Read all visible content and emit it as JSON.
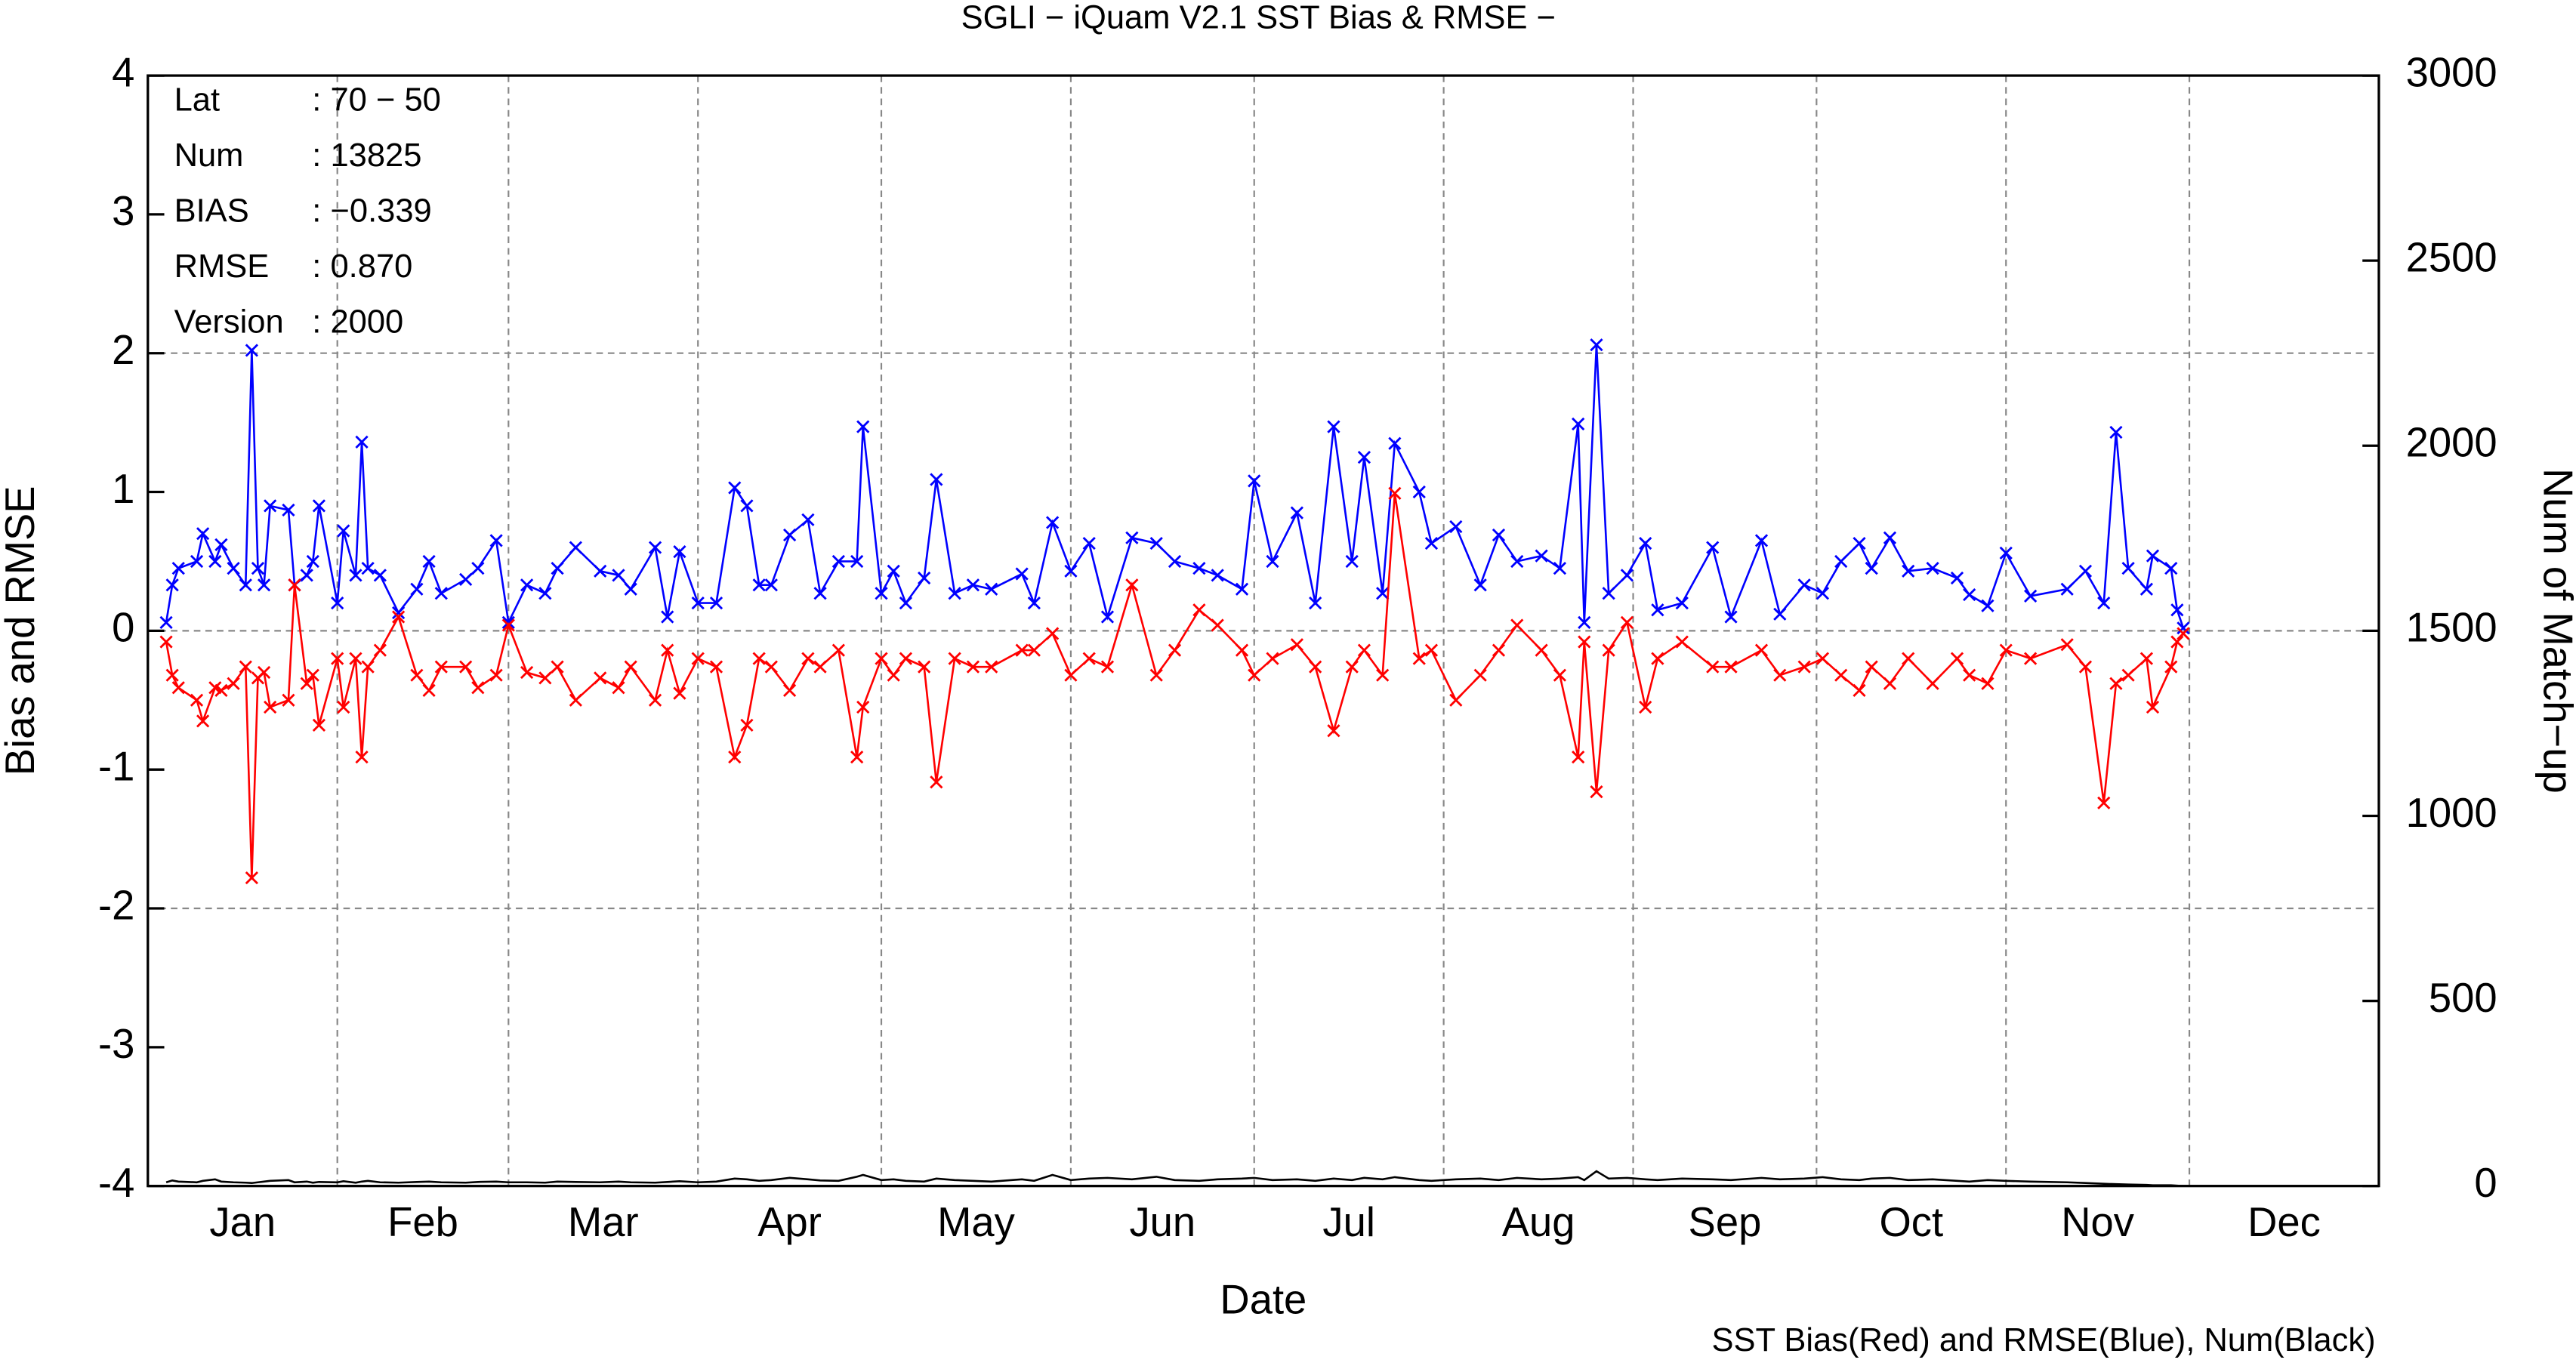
{
  "chart_data": {
    "type": "line",
    "title": "SGLI − iQuam V2.1 SST Bias & RMSE  −",
    "xlabel": "Date",
    "ylabel": "Bias and RMSE",
    "y2label": "Num of Match−up",
    "footer": "SST Bias(Red) and RMSE(Blue), Num(Black)",
    "stats": [
      {
        "label": "Lat",
        "value": ": 70 − 50"
      },
      {
        "label": "Num",
        "value": ": 13825"
      },
      {
        "label": "BIAS",
        "value": ": −0.339"
      },
      {
        "label": "RMSE",
        "value": ": 0.870"
      },
      {
        "label": "Version",
        "value": ": 2000"
      }
    ],
    "xlim": [
      0,
      365
    ],
    "xticks": [
      {
        "value": 15.5,
        "label": "Jan"
      },
      {
        "value": 45,
        "label": "Feb"
      },
      {
        "value": 74.5,
        "label": "Mar"
      },
      {
        "value": 105,
        "label": "Apr"
      },
      {
        "value": 135.5,
        "label": "May"
      },
      {
        "value": 166,
        "label": "Jun"
      },
      {
        "value": 196.5,
        "label": "Jul"
      },
      {
        "value": 227.5,
        "label": "Aug"
      },
      {
        "value": 258,
        "label": "Sep"
      },
      {
        "value": 288.5,
        "label": "Oct"
      },
      {
        "value": 319,
        "label": "Nov"
      },
      {
        "value": 349.5,
        "label": "Dec"
      }
    ],
    "xgrid": [
      31,
      59,
      90,
      120,
      151,
      181,
      212,
      243,
      273,
      304,
      334
    ],
    "ylim": [
      -4,
      4
    ],
    "yticks": [
      -4,
      -3,
      -2,
      -1,
      0,
      1,
      2,
      3,
      4
    ],
    "ygrid": [
      -2,
      0,
      2
    ],
    "y2lim": [
      0,
      3000
    ],
    "y2ticks": [
      0,
      500,
      1000,
      1500,
      2000,
      2500,
      3000
    ],
    "grid": true,
    "x": [
      3,
      4,
      5,
      8,
      9,
      11,
      12,
      14,
      16,
      17,
      18,
      19,
      20,
      23,
      24,
      26,
      27,
      28,
      31,
      32,
      34,
      35,
      36,
      38,
      41,
      44,
      46,
      48,
      52,
      54,
      57,
      59,
      62,
      65,
      67,
      70,
      74,
      77,
      79,
      83,
      85,
      87,
      90,
      93,
      96,
      98,
      100,
      102,
      105,
      108,
      110,
      113,
      116,
      117,
      120,
      122,
      124,
      127,
      129,
      132,
      135,
      138,
      143,
      145,
      148,
      151,
      154,
      157,
      161,
      165,
      168,
      172,
      175,
      179,
      181,
      184,
      188,
      191,
      194,
      197,
      199,
      202,
      204,
      208,
      210,
      214,
      218,
      221,
      224,
      228,
      231,
      234,
      235,
      237,
      239,
      242,
      245,
      247,
      251,
      256,
      259,
      264,
      267,
      271,
      274,
      277,
      280,
      282,
      285,
      288,
      292,
      296,
      298,
      301,
      304,
      308,
      314,
      317,
      320,
      322,
      324,
      327,
      328,
      331,
      332,
      333
    ],
    "series": [
      {
        "name": "RMSE",
        "color": "#0000ff",
        "values": [
          0.06,
          0.33,
          0.45,
          0.5,
          0.7,
          0.5,
          0.62,
          0.45,
          0.33,
          2.02,
          0.45,
          0.33,
          0.9,
          0.87,
          0.33,
          0.4,
          0.5,
          0.9,
          0.2,
          0.72,
          0.4,
          1.36,
          0.45,
          0.4,
          0.13,
          0.3,
          0.5,
          0.27,
          0.37,
          0.45,
          0.65,
          0.06,
          0.33,
          0.27,
          0.45,
          0.6,
          0.43,
          0.4,
          0.3,
          0.6,
          0.1,
          0.57,
          0.2,
          0.2,
          1.03,
          0.9,
          0.33,
          0.33,
          0.69,
          0.8,
          0.27,
          0.5,
          0.5,
          1.47,
          0.27,
          0.43,
          0.2,
          0.38,
          1.09,
          0.27,
          0.33,
          0.3,
          0.41,
          0.2,
          0.78,
          0.43,
          0.63,
          0.1,
          0.67,
          0.63,
          0.5,
          0.45,
          0.4,
          0.3,
          1.08,
          0.5,
          0.85,
          0.2,
          1.47,
          0.5,
          1.25,
          0.27,
          1.35,
          1.0,
          0.63,
          0.75,
          0.33,
          0.69,
          0.5,
          0.54,
          0.45,
          1.49,
          0.06,
          2.06,
          0.27,
          0.4,
          0.63,
          0.15,
          0.2,
          0.6,
          0.1,
          0.65,
          0.12,
          0.33,
          0.27,
          0.5,
          0.63,
          0.45,
          0.67,
          0.43,
          0.45,
          0.38,
          0.26,
          0.18,
          0.56,
          0.25,
          0.3,
          0.43,
          0.2,
          1.43,
          0.45,
          0.3,
          0.54,
          0.45,
          0.15,
          0.02
        ]
      },
      {
        "name": "Bias",
        "color": "#ff0000",
        "values": [
          -0.08,
          -0.32,
          -0.41,
          -0.5,
          -0.65,
          -0.41,
          -0.43,
          -0.38,
          -0.26,
          -1.78,
          -0.34,
          -0.3,
          -0.55,
          -0.5,
          0.33,
          -0.38,
          -0.32,
          -0.68,
          -0.2,
          -0.55,
          -0.2,
          -0.91,
          -0.26,
          -0.14,
          0.1,
          -0.32,
          -0.43,
          -0.26,
          -0.26,
          -0.41,
          -0.32,
          0.04,
          -0.3,
          -0.34,
          -0.26,
          -0.5,
          -0.34,
          -0.41,
          -0.26,
          -0.5,
          -0.14,
          -0.45,
          -0.2,
          -0.26,
          -0.91,
          -0.68,
          -0.2,
          -0.26,
          -0.43,
          -0.2,
          -0.26,
          -0.14,
          -0.91,
          -0.55,
          -0.2,
          -0.32,
          -0.2,
          -0.26,
          -1.09,
          -0.2,
          -0.26,
          -0.26,
          -0.14,
          -0.14,
          -0.02,
          -0.32,
          -0.2,
          -0.26,
          0.33,
          -0.32,
          -0.14,
          0.15,
          0.04,
          -0.14,
          -0.32,
          -0.2,
          -0.1,
          -0.26,
          -0.72,
          -0.26,
          -0.14,
          -0.32,
          0.99,
          -0.2,
          -0.14,
          -0.5,
          -0.32,
          -0.14,
          0.04,
          -0.14,
          -0.32,
          -0.91,
          -0.08,
          -1.16,
          -0.14,
          0.06,
          -0.55,
          -0.2,
          -0.08,
          -0.26,
          -0.26,
          -0.14,
          -0.32,
          -0.26,
          -0.2,
          -0.32,
          -0.43,
          -0.26,
          -0.38,
          -0.2,
          -0.38,
          -0.2,
          -0.32,
          -0.38,
          -0.14,
          -0.2,
          -0.1,
          -0.26,
          -1.24,
          -0.38,
          -0.32,
          -0.2,
          -0.55,
          -0.26,
          -0.08,
          -0.02
        ]
      },
      {
        "name": "Num",
        "color": "#000000",
        "axis": "y2",
        "values": [
          10,
          15,
          12,
          10,
          14,
          18,
          12,
          10,
          9,
          8,
          10,
          12,
          14,
          16,
          10,
          12,
          9,
          11,
          10,
          13,
          9,
          12,
          14,
          10,
          9,
          11,
          12,
          10,
          9,
          11,
          12,
          10,
          10,
          9,
          12,
          11,
          10,
          12,
          10,
          9,
          11,
          13,
          10,
          12,
          20,
          18,
          14,
          16,
          22,
          18,
          15,
          14,
          25,
          30,
          16,
          18,
          14,
          12,
          20,
          16,
          14,
          12,
          18,
          14,
          30,
          16,
          20,
          22,
          18,
          25,
          16,
          14,
          18,
          20,
          22,
          16,
          18,
          14,
          20,
          16,
          22,
          18,
          24,
          16,
          14,
          18,
          20,
          16,
          22,
          18,
          20,
          24,
          16,
          40,
          20,
          22,
          18,
          16,
          20,
          18,
          16,
          22,
          18,
          20,
          24,
          18,
          16,
          20,
          22,
          16,
          18,
          14,
          12,
          16,
          14,
          12,
          10,
          8,
          6,
          5,
          4,
          3,
          2,
          2,
          1,
          0
        ]
      }
    ]
  }
}
